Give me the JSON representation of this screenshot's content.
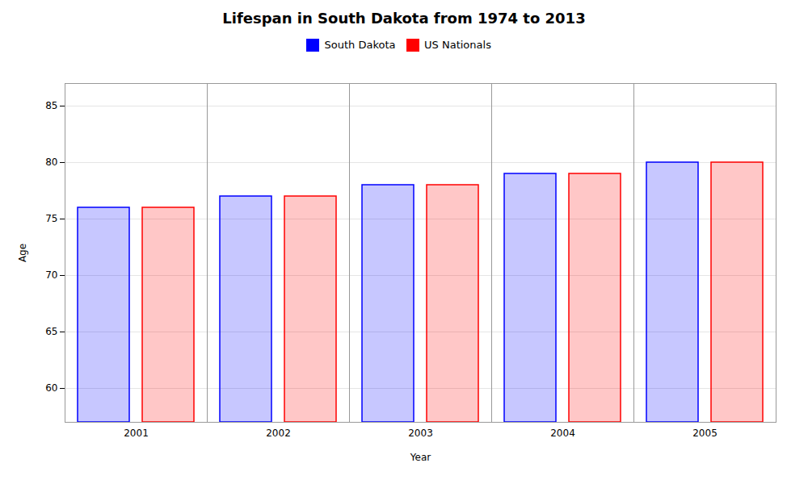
{
  "chart_data": {
    "type": "bar",
    "title": "Lifespan in South Dakota from 1974 to 2013",
    "xlabel": "Year",
    "ylabel": "Age",
    "categories": [
      "2001",
      "2002",
      "2003",
      "2004",
      "2005"
    ],
    "series": [
      {
        "name": "South Dakota",
        "color": "#0000ff",
        "values": [
          76,
          77,
          78,
          79,
          80
        ]
      },
      {
        "name": "US Nationals",
        "color": "#ff0000",
        "values": [
          76,
          77,
          78,
          79,
          80
        ]
      }
    ],
    "ylim": [
      57,
      87
    ],
    "yticks": [
      60,
      65,
      70,
      75,
      80,
      85
    ],
    "grid": true,
    "legend": "top"
  }
}
